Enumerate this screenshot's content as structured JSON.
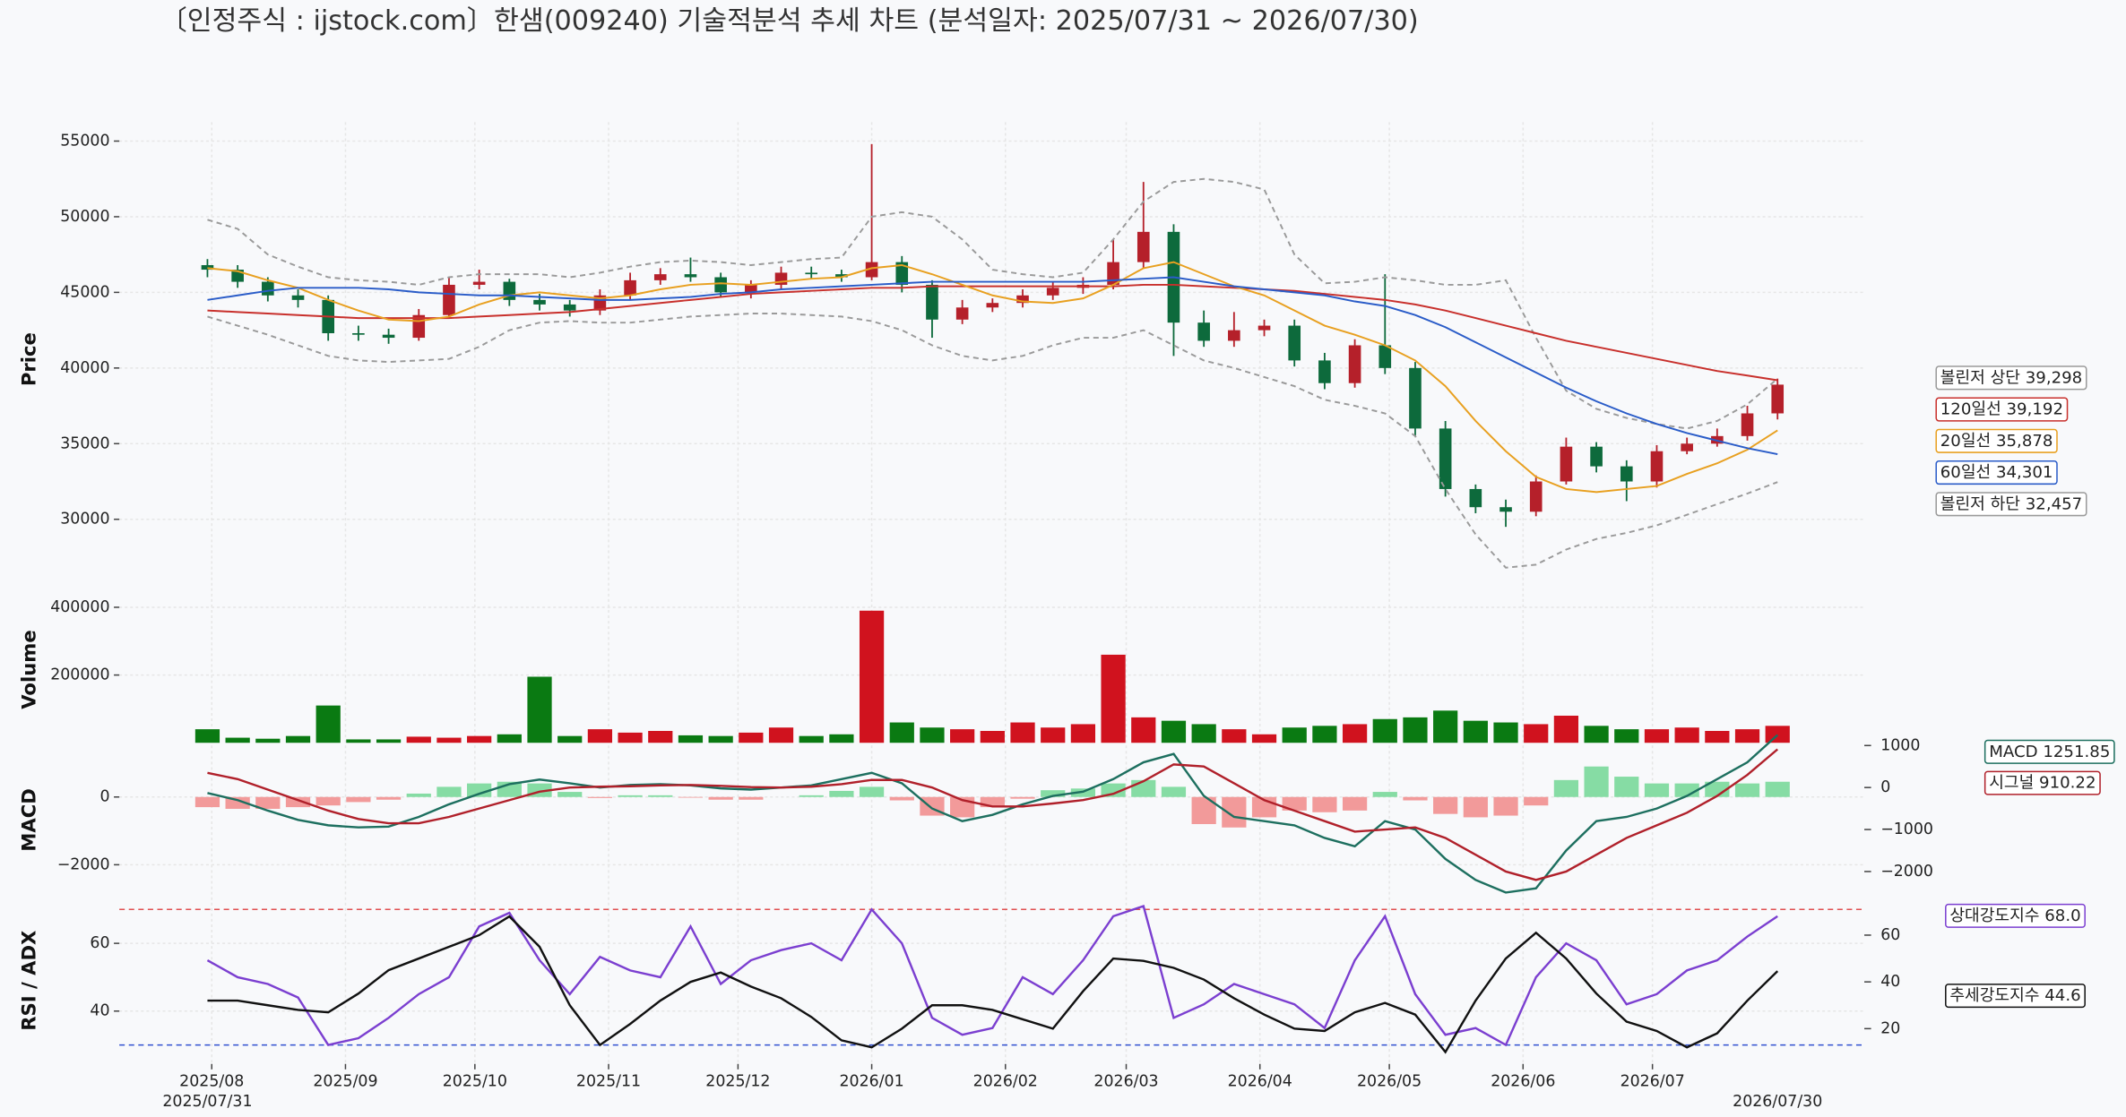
{
  "chart_data": [
    {
      "type": "candlestick",
      "title": "〔인정주식 : ijstock.com〕한샘(009240) 기술적분석 추세 차트 (분석일자: 2025/07/31 ~ 2026/07/30)",
      "ylabel": "Price",
      "x": [
        "2025/07/31",
        "2025/08/07",
        "2025/08/14",
        "2025/08/21",
        "2025/08/28",
        "2025/09/04",
        "2025/09/11",
        "2025/09/18",
        "2025/09/25",
        "2025/10/02",
        "2025/10/09",
        "2025/10/16",
        "2025/10/23",
        "2025/10/30",
        "2025/11/06",
        "2025/11/13",
        "2025/11/20",
        "2025/11/27",
        "2025/12/04",
        "2025/12/11",
        "2025/12/18",
        "2025/12/25",
        "2026/01/01",
        "2026/01/08",
        "2026/01/15",
        "2026/01/22",
        "2026/01/29",
        "2026/02/05",
        "2026/02/12",
        "2026/02/19",
        "2026/02/26",
        "2026/03/05",
        "2026/03/12",
        "2026/03/19",
        "2026/03/26",
        "2026/04/02",
        "2026/04/09",
        "2026/04/16",
        "2026/04/23",
        "2026/04/30",
        "2026/05/07",
        "2026/05/14",
        "2026/05/21",
        "2026/05/28",
        "2026/06/04",
        "2026/06/11",
        "2026/06/18",
        "2026/06/25",
        "2026/07/02",
        "2026/07/09",
        "2026/07/16",
        "2026/07/23",
        "2026/07/30"
      ],
      "xticks": [
        {
          "value": "2025/08/01",
          "label": "2025/08"
        },
        {
          "value": "2025/09/01",
          "label": "2025/09"
        },
        {
          "value": "2025/10/01",
          "label": "2025/10"
        },
        {
          "value": "2025/11/01",
          "label": "2025/11"
        },
        {
          "value": "2025/12/01",
          "label": "2025/12"
        },
        {
          "value": "2026/01/01",
          "label": "2026/01"
        },
        {
          "value": "2026/02/01",
          "label": "2026/02"
        },
        {
          "value": "2026/03/01",
          "label": "2026/03"
        },
        {
          "value": "2026/04/01",
          "label": "2026/04"
        },
        {
          "value": "2026/05/01",
          "label": "2026/05"
        },
        {
          "value": "2026/06/01",
          "label": "2026/06"
        },
        {
          "value": "2026/07/01",
          "label": "2026/07"
        }
      ],
      "open": [
        46800,
        46500,
        45700,
        44800,
        44500,
        42300,
        42200,
        42000,
        43500,
        45500,
        45700,
        44500,
        44200,
        43800,
        44800,
        45800,
        46200,
        46000,
        45000,
        45500,
        46300,
        46200,
        46000,
        47000,
        45500,
        43200,
        44000,
        44300,
        44800,
        45300,
        45500,
        47000,
        49000,
        43000,
        41800,
        42500,
        42800,
        40500,
        39000,
        41500,
        40000,
        36000,
        32000,
        30800,
        30500,
        32500,
        34800,
        33500,
        32500,
        34500,
        35000,
        35500,
        37000
      ],
      "high": [
        47200,
        46800,
        46000,
        45200,
        44800,
        42800,
        42600,
        43900,
        46000,
        46500,
        45900,
        44900,
        44500,
        45200,
        46300,
        46600,
        47300,
        46300,
        45800,
        46700,
        46700,
        46500,
        54800,
        47400,
        45800,
        44500,
        44600,
        45200,
        45700,
        46000,
        48500,
        52300,
        49500,
        43800,
        43700,
        43200,
        43200,
        41000,
        41900,
        46200,
        40400,
        36500,
        32300,
        31300,
        32900,
        35400,
        35100,
        33900,
        34900,
        35400,
        36000,
        37500,
        39300
      ],
      "low": [
        46000,
        45300,
        44400,
        44000,
        41800,
        41800,
        41600,
        41800,
        43300,
        45200,
        44100,
        43800,
        43400,
        43500,
        44500,
        45500,
        45700,
        44700,
        44600,
        45200,
        45900,
        45700,
        45800,
        45000,
        42000,
        42900,
        43700,
        44000,
        44500,
        44900,
        45200,
        46600,
        40800,
        41400,
        41400,
        42100,
        40100,
        38600,
        38700,
        39600,
        35500,
        31500,
        30400,
        29500,
        30200,
        32300,
        33100,
        31200,
        32100,
        34300,
        34800,
        35200,
        36600
      ],
      "close": [
        46500,
        45700,
        44800,
        44500,
        42300,
        42200,
        42000,
        43500,
        45500,
        45700,
        44500,
        44200,
        43800,
        44800,
        45800,
        46200,
        46000,
        45000,
        45500,
        46300,
        46200,
        46000,
        47000,
        45500,
        43200,
        44000,
        44300,
        44800,
        45300,
        45500,
        47000,
        49000,
        43000,
        41800,
        42500,
        42800,
        40500,
        39000,
        41500,
        40000,
        36000,
        32000,
        30800,
        30500,
        32500,
        34800,
        33500,
        32500,
        34500,
        35000,
        35500,
        37000,
        38900
      ],
      "up_color": "#b5202a",
      "down_color": "#0d6a3c",
      "ylim": [
        24900,
        56250
      ],
      "yticks": [
        30000,
        35000,
        40000,
        45000,
        50000,
        55000
      ],
      "grid": true,
      "series": [
        {
          "name": "볼린저 상단 39,298",
          "color": "#9a9a9a",
          "dash": true,
          "values": [
            49800,
            49200,
            47500,
            46700,
            46000,
            45800,
            45700,
            45500,
            46000,
            46200,
            46200,
            46200,
            46000,
            46300,
            46700,
            47000,
            47100,
            47000,
            46800,
            47000,
            47200,
            47300,
            50000,
            50300,
            50000,
            48500,
            46500,
            46200,
            46000,
            46300,
            48500,
            51000,
            52300,
            52500,
            52300,
            51800,
            47500,
            45600,
            45700,
            46000,
            45800,
            45500,
            45500,
            45800,
            42000,
            38500,
            37300,
            36700,
            36300,
            36000,
            36500,
            37600,
            39298
          ]
        },
        {
          "name": "120일선 39,192",
          "color": "#c8302c",
          "dash": false,
          "values": [
            43800,
            43700,
            43600,
            43500,
            43400,
            43300,
            43300,
            43300,
            43300,
            43400,
            43500,
            43600,
            43700,
            43900,
            44100,
            44300,
            44500,
            44700,
            44900,
            45000,
            45100,
            45200,
            45300,
            45300,
            45400,
            45400,
            45400,
            45400,
            45400,
            45400,
            45400,
            45500,
            45500,
            45400,
            45300,
            45200,
            45100,
            44900,
            44700,
            44500,
            44200,
            43800,
            43300,
            42800,
            42300,
            41800,
            41400,
            41000,
            40600,
            40200,
            39800,
            39500,
            39192
          ]
        },
        {
          "name": "20일선 35,878",
          "color": "#e8a020",
          "dash": false,
          "values": [
            46600,
            46400,
            45800,
            45300,
            44500,
            43800,
            43200,
            43100,
            43400,
            44200,
            44800,
            45000,
            44800,
            44600,
            44800,
            45200,
            45500,
            45600,
            45500,
            45700,
            45900,
            46000,
            46600,
            46800,
            46200,
            45500,
            44800,
            44400,
            44300,
            44600,
            45500,
            46600,
            47000,
            46200,
            45400,
            44800,
            43800,
            42800,
            42200,
            41500,
            40500,
            38800,
            36500,
            34500,
            32800,
            32000,
            31800,
            32000,
            32200,
            33000,
            33700,
            34600,
            35878
          ]
        },
        {
          "name": "60일선 34,301",
          "color": "#2a5cc8",
          "dash": false,
          "values": [
            44500,
            44800,
            45100,
            45300,
            45300,
            45300,
            45200,
            45000,
            44900,
            44800,
            44800,
            44700,
            44600,
            44500,
            44500,
            44600,
            44700,
            44900,
            45000,
            45200,
            45300,
            45400,
            45500,
            45600,
            45700,
            45700,
            45700,
            45700,
            45700,
            45700,
            45800,
            45900,
            46000,
            45700,
            45400,
            45200,
            45000,
            44800,
            44400,
            44100,
            43500,
            42700,
            41700,
            40700,
            39700,
            38700,
            37800,
            37000,
            36300,
            35700,
            35200,
            34700,
            34301
          ]
        },
        {
          "name": "볼린저 하단 32,457",
          "color": "#9a9a9a",
          "dash": true,
          "values": [
            43400,
            42800,
            42200,
            41500,
            40800,
            40500,
            40400,
            40500,
            40600,
            41400,
            42500,
            43000,
            43100,
            43000,
            43000,
            43200,
            43400,
            43500,
            43600,
            43600,
            43500,
            43400,
            43100,
            42500,
            41500,
            40800,
            40500,
            40800,
            41500,
            42000,
            42000,
            42500,
            41500,
            40500,
            40000,
            39400,
            38800,
            37900,
            37500,
            37000,
            35500,
            32000,
            29000,
            26800,
            27000,
            28000,
            28700,
            29100,
            29600,
            30300,
            31000,
            31700,
            32457
          ]
        }
      ]
    },
    {
      "type": "volume",
      "ylabel": "Volume",
      "values": [
        40000,
        15000,
        12000,
        20000,
        110000,
        10000,
        10000,
        18000,
        15000,
        20000,
        25000,
        195000,
        20000,
        40000,
        30000,
        35000,
        22000,
        20000,
        30000,
        45000,
        20000,
        25000,
        390000,
        60000,
        45000,
        40000,
        35000,
        60000,
        45000,
        55000,
        260000,
        75000,
        65000,
        55000,
        40000,
        25000,
        45000,
        50000,
        55000,
        70000,
        75000,
        95000,
        65000,
        60000,
        55000,
        80000,
        50000,
        40000,
        40000,
        45000,
        35000,
        40000,
        50000
      ],
      "up_color": "#d0121e",
      "down_color": "#0a7a12",
      "ylim": [
        0,
        432000
      ],
      "yticks": [
        200000,
        400000
      ],
      "grid": true
    },
    {
      "type": "macd",
      "ylabel": "MACD",
      "histogram": {
        "positive_color": "#86dca4",
        "negative_color": "#f29a9a",
        "values": [
          -300,
          -350,
          -350,
          -300,
          -250,
          -150,
          -80,
          100,
          300,
          400,
          450,
          400,
          150,
          -30,
          50,
          50,
          -20,
          -80,
          -80,
          0,
          50,
          180,
          300,
          -100,
          -550,
          -600,
          -300,
          -50,
          200,
          250,
          400,
          500,
          300,
          -800,
          -900,
          -600,
          -400,
          -450,
          -400,
          150,
          -100,
          -500,
          -600,
          -550,
          -250,
          500,
          900,
          600,
          400,
          400,
          450,
          400,
          450
        ]
      },
      "series": [
        {
          "name": "MACD 1251.85",
          "color": "#1d6f5f",
          "axis": "y2",
          "values": [
            -130,
            -300,
            -550,
            -770,
            -900,
            -950,
            -930,
            -700,
            -400,
            -150,
            80,
            190,
            100,
            0,
            60,
            80,
            50,
            -20,
            -50,
            0,
            50,
            200,
            350,
            100,
            -500,
            -800,
            -650,
            -400,
            -200,
            -100,
            200,
            600,
            800,
            -200,
            -700,
            -800,
            -900,
            -1200,
            -1400,
            -800,
            -1000,
            -1700,
            -2200,
            -2500,
            -2400,
            -1500,
            -800,
            -700,
            -500,
            -200,
            200,
            600,
            1251.85
          ]
        },
        {
          "name": "시그널 910.22",
          "color": "#b0202a",
          "axis": "y2",
          "values": [
            350,
            200,
            -50,
            -300,
            -550,
            -750,
            -850,
            -850,
            -700,
            -500,
            -300,
            -100,
            0,
            20,
            30,
            50,
            60,
            40,
            10,
            0,
            20,
            80,
            180,
            180,
            0,
            -300,
            -450,
            -450,
            -380,
            -300,
            -150,
            150,
            550,
            500,
            100,
            -300,
            -550,
            -800,
            -1050,
            -1000,
            -950,
            -1200,
            -1600,
            -2000,
            -2200,
            -2000,
            -1600,
            -1200,
            -900,
            -600,
            -200,
            300,
            910.22
          ]
        }
      ],
      "ylim": [
        -2960,
        1600
      ],
      "yticks": [
        {
          "value": -2000,
          "label": "−2000"
        },
        0
      ],
      "y2lim": [
        -2613,
        1065
      ],
      "y2ticks": [
        {
          "value": -2000,
          "label": "−2000"
        },
        {
          "value": -1000,
          "label": "−1000"
        },
        0,
        1000
      ],
      "grid": true
    },
    {
      "type": "line",
      "ylabel": "RSI / ADX",
      "ref_lines": [
        {
          "value": 70,
          "color": "#e05050"
        },
        {
          "value": 30,
          "color": "#3050d0"
        }
      ],
      "series": [
        {
          "name": "상대강도지수 68.0",
          "color": "#7b3fd0",
          "axis": "y",
          "values": [
            55,
            50,
            48,
            44,
            30,
            32,
            38,
            45,
            50,
            65,
            69,
            55,
            45,
            56,
            52,
            50,
            65,
            48,
            55,
            58,
            60,
            55,
            70,
            60,
            38,
            33,
            35,
            50,
            45,
            55,
            68,
            71,
            38,
            42,
            48,
            45,
            42,
            35,
            55,
            68,
            45,
            33,
            35,
            30,
            50,
            60,
            55,
            42,
            45,
            52,
            55,
            62,
            68.0
          ]
        },
        {
          "name": "추세강도지수 44.6",
          "color": "#111111",
          "axis": "y2",
          "values": [
            32,
            32,
            30,
            28,
            27,
            35,
            45,
            50,
            55,
            60,
            68,
            55,
            30,
            13,
            22,
            32,
            40,
            44,
            38,
            33,
            25,
            15,
            12,
            20,
            30,
            30,
            28,
            24,
            20,
            36,
            50,
            49,
            46,
            41,
            33,
            26,
            20,
            19,
            27,
            31,
            26,
            10,
            32,
            50,
            61,
            50,
            35,
            23,
            19,
            12,
            18,
            32,
            44.6
          ]
        }
      ],
      "ylim": [
        24.4,
        73.6
      ],
      "yticks": [
        40,
        60
      ],
      "y2lim": [
        4.9,
        76.2
      ],
      "y2ticks": [
        20,
        40,
        60
      ],
      "grid": true
    }
  ]
}
